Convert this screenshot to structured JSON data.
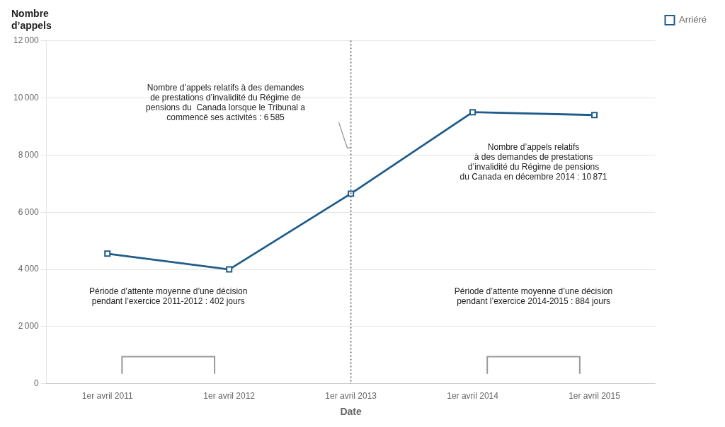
{
  "chart_data": {
    "type": "line",
    "ylabel": "Nombre\nd’appels",
    "xlabel": "Date",
    "categories": [
      "1er avril 2011",
      "1er avril 2012",
      "1er avril 2013",
      "1er avril 2014",
      "1er avril 2015"
    ],
    "series": [
      {
        "name": "Arriéré",
        "color": "#1f5c8b",
        "marker": "square",
        "values": [
          4550,
          4000,
          6650,
          9500,
          9400
        ]
      }
    ],
    "ylim": [
      0,
      12000
    ],
    "yticks": [
      0,
      {
        "value": 2000,
        "label": "2 000"
      },
      {
        "value": 4000,
        "label": "4 000"
      },
      {
        "value": 6000,
        "label": "6 000"
      },
      {
        "value": 8000,
        "label": "8 000"
      },
      {
        "value": 10000,
        "label": "10 000"
      },
      {
        "value": 12000,
        "label": "12 000"
      }
    ],
    "grid": true,
    "legend": "right",
    "annotations": [
      "Nombre d’appels relatifs à des demandes\nde prestations d’invalidité du Régime de\npensions du  Canada lorsque le Tribunal a\ncommencé ses activités : 6 585",
      "Nombre d’appels relatifs\nà des demandes de prestations\nd’invalidité du Régime de pensions\ndu Canada en décembre 2014 : 10 871",
      "Période d’attente moyenne d’une décision\npendant l’exercice 2011-2012 : 402 jours",
      "Période d’attente moyenne d’une décision\npendant l’exercice 2014-2015 : 884 jours"
    ]
  }
}
